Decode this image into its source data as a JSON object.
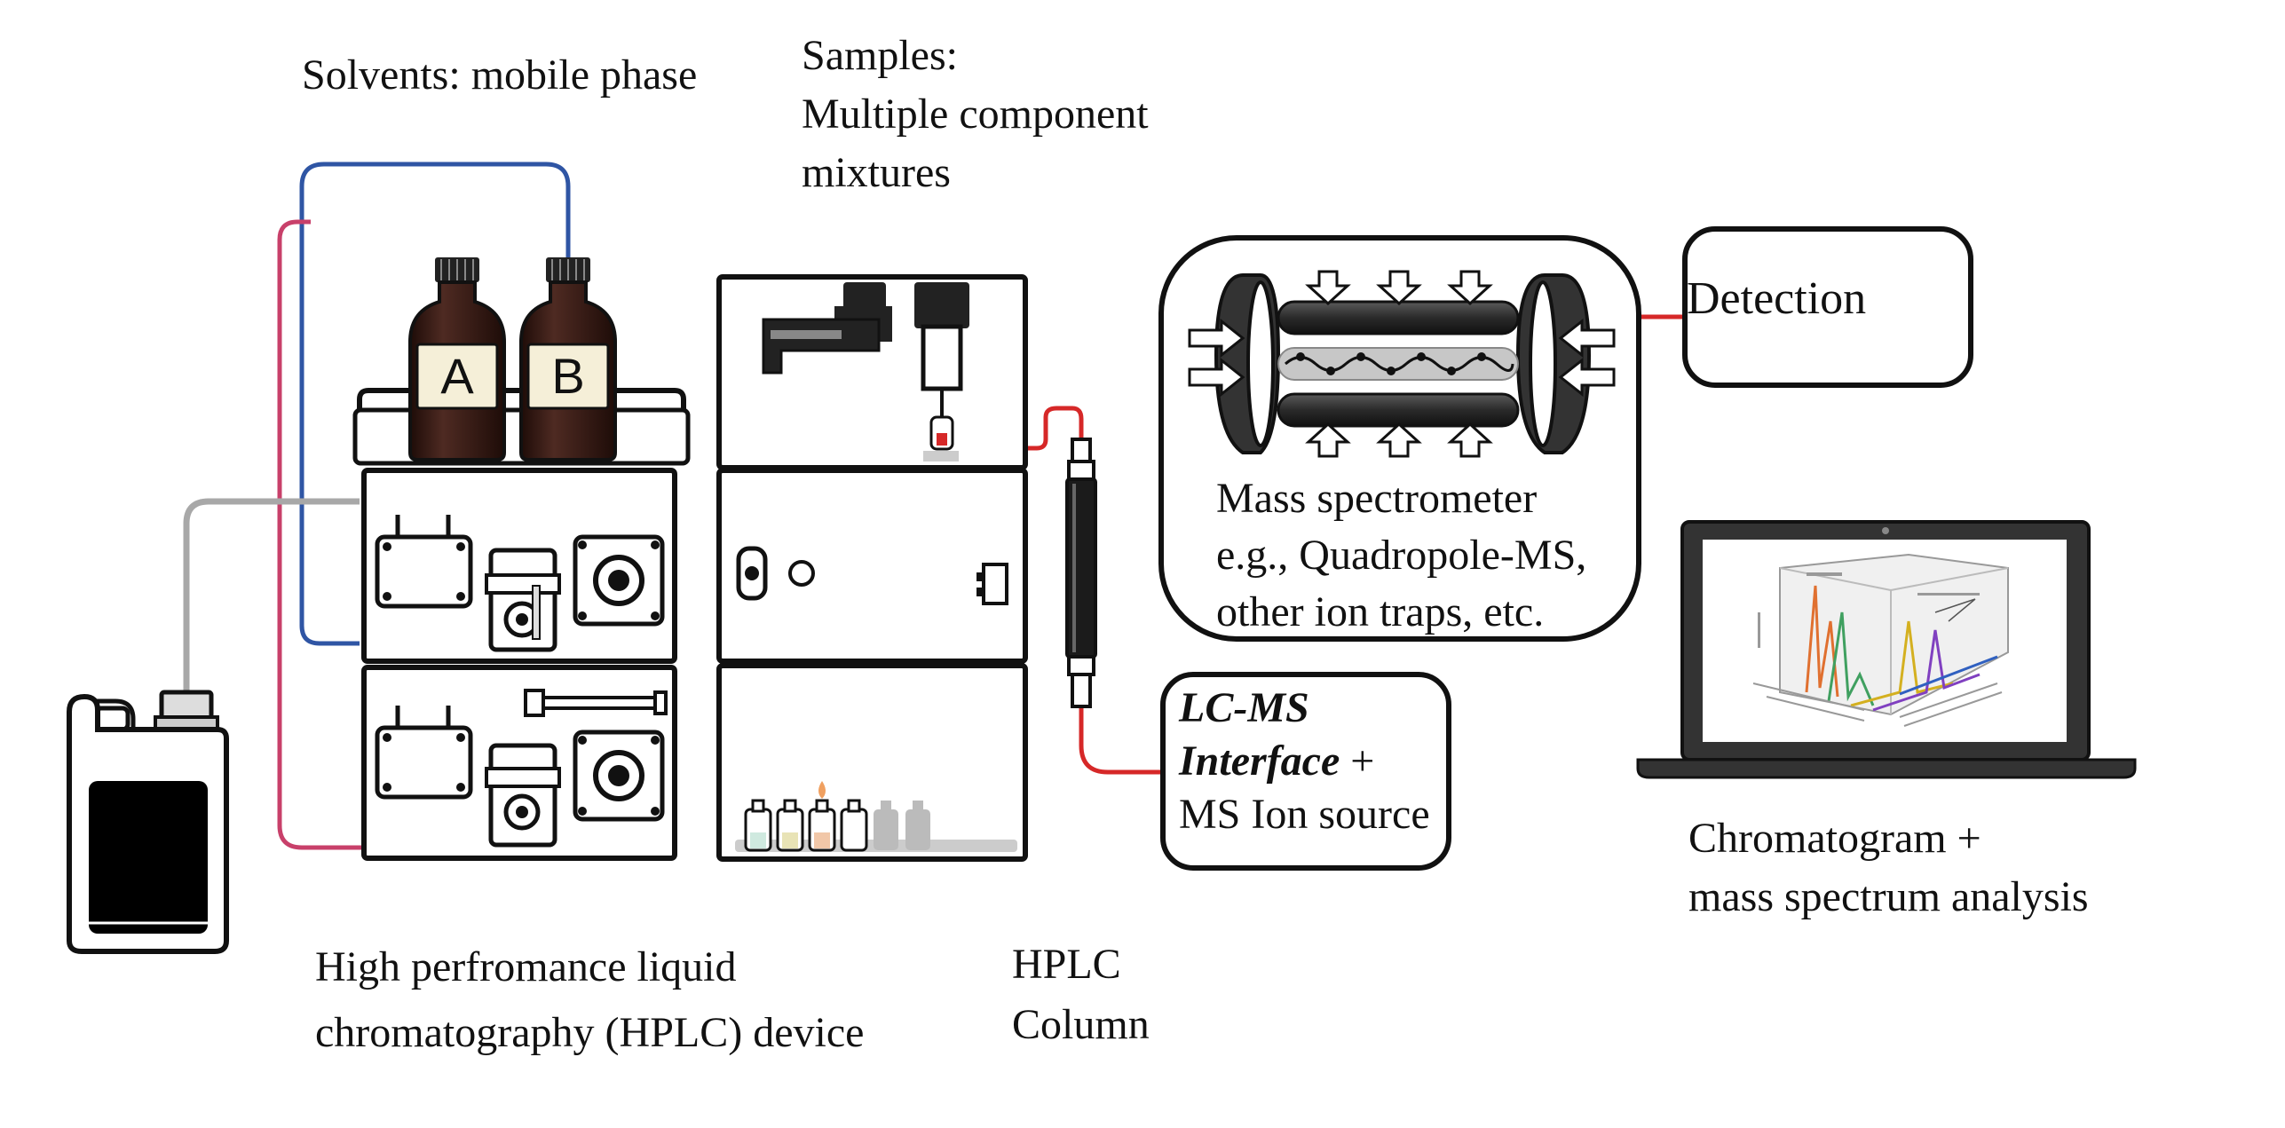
{
  "labels": {
    "solvents": "Solvents: mobile phase",
    "samples": [
      "Samples:",
      "Multiple component",
      "mixtures"
    ],
    "mass_spectrometer": [
      "Mass spectrometer",
      "e.g., Quadropole-MS,",
      "other ion traps, etc."
    ],
    "detection": "Detection",
    "interface": {
      "line1": "LC-MS",
      "line2_bold": "Interface",
      "line2_plain": " +",
      "line3": "MS Ion source"
    },
    "chromatogram": [
      "Chromatogram +",
      "mass spectrum analysis"
    ],
    "hplc_device": [
      "High perfromance liquid",
      "chromatography (HPLC) device"
    ],
    "hplc_column": [
      "HPLC",
      "Column"
    ]
  },
  "bottles": [
    "A",
    "B"
  ],
  "colors": {
    "blue_tube": "#2f55a4",
    "pink_tube": "#c8406a",
    "gray_tube": "#a8a8a8",
    "red_tube": "#d62828",
    "bottle_glass": "#3b1c16",
    "outline": "#111111"
  },
  "icons": [
    "solvent-bottle-icon",
    "waste-canister-icon",
    "pump-module-icon",
    "autosampler-icon",
    "hplc-column-icon",
    "quadrupole-icon",
    "laptop-icon"
  ]
}
